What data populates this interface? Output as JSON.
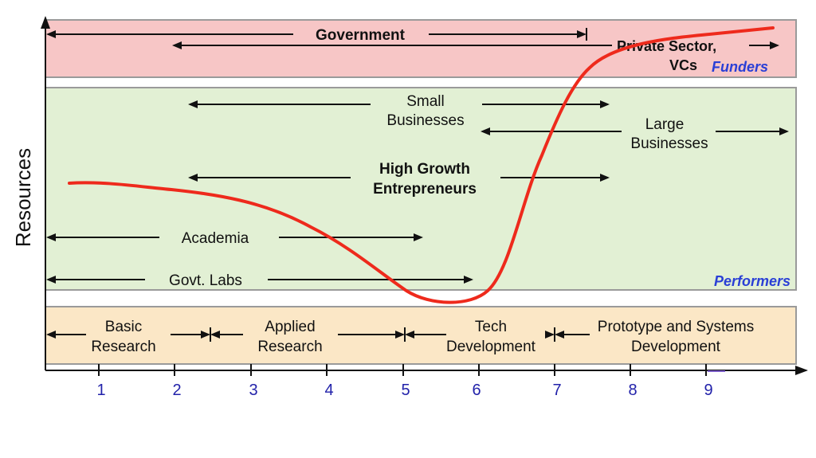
{
  "y_axis_label": "Resources",
  "x_ticks": [
    "1",
    "2",
    "3",
    "4",
    "5",
    "6",
    "7",
    "8",
    "9"
  ],
  "bands": {
    "funders": {
      "tag": "Funders",
      "government": "Government",
      "private": [
        "Private Sector,",
        "VCs"
      ]
    },
    "performers": {
      "tag": "Performers",
      "small_businesses": [
        "Small",
        "Businesses"
      ],
      "large_businesses": [
        "Large",
        "Businesses"
      ],
      "entrepreneurs": [
        "High Growth",
        "Entrepreneurs"
      ],
      "academia": "Academia",
      "govt_labs": "Govt. Labs"
    },
    "stages": {
      "basic": [
        "Basic",
        "Research"
      ],
      "applied": [
        "Applied",
        "Research"
      ],
      "tech": [
        "Tech",
        "Development"
      ],
      "prototype": [
        "Prototype and Systems",
        "Development"
      ]
    }
  },
  "colors": {
    "funders_band": "#f7c6c6",
    "performers_band": "#e2f0d4",
    "stages_band": "#fbe7c6",
    "curve": "#ee2a1c",
    "tick_text": "#2222aa",
    "tag_text": "#2a3fd6"
  }
}
